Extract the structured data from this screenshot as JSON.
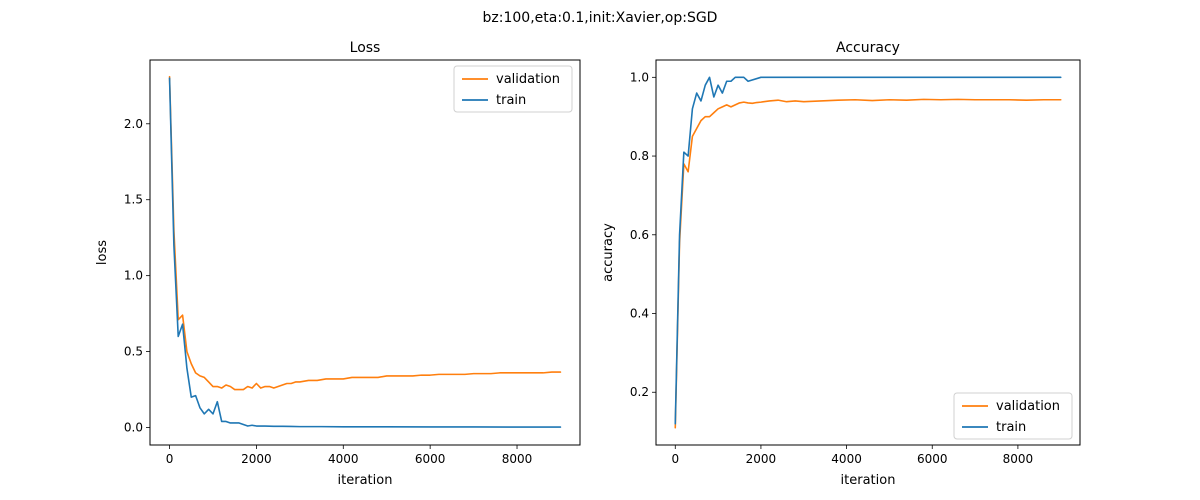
{
  "suptitle": "bz:100,eta:0.1,init:Xavier,op:SGD",
  "chart_data": [
    {
      "type": "line",
      "title": "Loss",
      "xlabel": "iteration",
      "ylabel": "loss",
      "xlim": [
        -450,
        9450
      ],
      "ylim": [
        -0.115,
        2.42
      ],
      "xticks": [
        0,
        2000,
        4000,
        6000,
        8000
      ],
      "xtick_labels": [
        "0",
        "2000",
        "4000",
        "6000",
        "8000"
      ],
      "yticks": [
        0.0,
        0.5,
        1.0,
        1.5,
        2.0
      ],
      "ytick_labels": [
        "0.0",
        "0.5",
        "1.0",
        "1.5",
        "2.0"
      ],
      "grid": false,
      "legend_position": "upper right",
      "legend_order": [
        "validation",
        "train"
      ],
      "series": [
        {
          "name": "validation",
          "color": "#ff7f0e",
          "x": [
            0,
            100,
            200,
            300,
            400,
            500,
            600,
            700,
            800,
            900,
            1000,
            1100,
            1200,
            1300,
            1400,
            1500,
            1600,
            1700,
            1800,
            1900,
            2000,
            2100,
            2200,
            2300,
            2400,
            2500,
            2600,
            2700,
            2800,
            2900,
            3000,
            3200,
            3400,
            3600,
            3800,
            4000,
            4200,
            4400,
            4600,
            4800,
            5000,
            5200,
            5400,
            5600,
            5800,
            6000,
            6200,
            6400,
            6600,
            6800,
            7000,
            7200,
            7400,
            7600,
            7800,
            8000,
            8200,
            8400,
            8600,
            8800,
            9000
          ],
          "y": [
            2.31,
            1.3,
            0.71,
            0.74,
            0.5,
            0.42,
            0.36,
            0.34,
            0.33,
            0.3,
            0.27,
            0.27,
            0.26,
            0.28,
            0.27,
            0.25,
            0.25,
            0.25,
            0.27,
            0.26,
            0.29,
            0.26,
            0.27,
            0.27,
            0.26,
            0.27,
            0.28,
            0.29,
            0.29,
            0.3,
            0.3,
            0.31,
            0.31,
            0.32,
            0.32,
            0.32,
            0.33,
            0.33,
            0.33,
            0.33,
            0.34,
            0.34,
            0.34,
            0.34,
            0.345,
            0.345,
            0.35,
            0.35,
            0.35,
            0.35,
            0.355,
            0.355,
            0.355,
            0.36,
            0.36,
            0.36,
            0.36,
            0.36,
            0.36,
            0.365,
            0.365
          ]
        },
        {
          "name": "train",
          "color": "#1f77b4",
          "x": [
            0,
            100,
            200,
            300,
            400,
            500,
            600,
            700,
            800,
            900,
            1000,
            1100,
            1200,
            1300,
            1400,
            1500,
            1600,
            1700,
            1800,
            1900,
            2000,
            2200,
            2400,
            2600,
            2800,
            3000,
            3500,
            4000,
            5000,
            6000,
            7000,
            8000,
            9000
          ],
          "y": [
            2.3,
            1.2,
            0.6,
            0.68,
            0.39,
            0.2,
            0.21,
            0.13,
            0.09,
            0.12,
            0.09,
            0.17,
            0.04,
            0.04,
            0.03,
            0.03,
            0.03,
            0.02,
            0.01,
            0.015,
            0.01,
            0.01,
            0.008,
            0.008,
            0.007,
            0.006,
            0.006,
            0.005,
            0.005,
            0.004,
            0.004,
            0.003,
            0.003
          ]
        }
      ]
    },
    {
      "type": "line",
      "title": "Accuracy",
      "xlabel": "iteration",
      "ylabel": "accuracy",
      "xlim": [
        -450,
        9450
      ],
      "ylim": [
        0.066,
        1.044
      ],
      "xticks": [
        0,
        2000,
        4000,
        6000,
        8000
      ],
      "xtick_labels": [
        "0",
        "2000",
        "4000",
        "6000",
        "8000"
      ],
      "yticks": [
        0.2,
        0.4,
        0.6,
        0.8,
        1.0
      ],
      "ytick_labels": [
        "0.2",
        "0.4",
        "0.6",
        "0.8",
        "1.0"
      ],
      "grid": false,
      "legend_position": "lower right",
      "legend_order": [
        "validation",
        "train"
      ],
      "series": [
        {
          "name": "validation",
          "color": "#ff7f0e",
          "x": [
            0,
            100,
            200,
            300,
            400,
            500,
            600,
            700,
            800,
            900,
            1000,
            1100,
            1200,
            1300,
            1400,
            1500,
            1600,
            1700,
            1800,
            1900,
            2000,
            2200,
            2400,
            2600,
            2800,
            3000,
            3400,
            3800,
            4200,
            4600,
            5000,
            5400,
            5800,
            6200,
            6600,
            7000,
            7400,
            7800,
            8200,
            8600,
            9000
          ],
          "y": [
            0.11,
            0.58,
            0.78,
            0.76,
            0.85,
            0.87,
            0.89,
            0.9,
            0.9,
            0.91,
            0.92,
            0.925,
            0.93,
            0.925,
            0.93,
            0.935,
            0.937,
            0.935,
            0.934,
            0.936,
            0.937,
            0.94,
            0.942,
            0.938,
            0.94,
            0.938,
            0.94,
            0.942,
            0.943,
            0.941,
            0.943,
            0.942,
            0.944,
            0.943,
            0.944,
            0.943,
            0.943,
            0.943,
            0.942,
            0.943,
            0.943
          ]
        },
        {
          "name": "train",
          "color": "#1f77b4",
          "x": [
            0,
            100,
            200,
            300,
            400,
            500,
            600,
            700,
            800,
            900,
            1000,
            1100,
            1200,
            1300,
            1400,
            1500,
            1600,
            1700,
            2000,
            3000,
            4000,
            5000,
            6000,
            7000,
            8000,
            9000
          ],
          "y": [
            0.12,
            0.6,
            0.81,
            0.8,
            0.92,
            0.96,
            0.94,
            0.98,
            1.0,
            0.95,
            0.98,
            0.96,
            0.99,
            0.99,
            1.0,
            1.0,
            1.0,
            0.99,
            1.0,
            1.0,
            1.0,
            1.0,
            1.0,
            1.0,
            1.0,
            1.0
          ]
        }
      ]
    }
  ]
}
